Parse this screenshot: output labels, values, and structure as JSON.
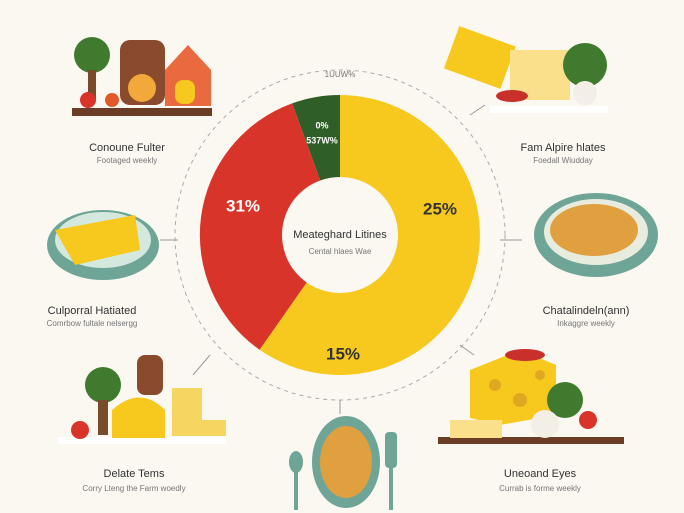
{
  "top_label": "1UUW%",
  "center": {
    "title": "Meateghard Litines",
    "subtitle": "Cental hlaes Wae"
  },
  "segment_labels": [
    "0%",
    "537W%",
    "31%",
    "25%",
    "15%"
  ],
  "items": [
    {
      "title": "Conoune Fulter",
      "subtitle": "Footaged weekly"
    },
    {
      "title": "Fam Alpire hlates",
      "subtitle": "Foedall Wiudday"
    },
    {
      "title": "Culporral Hatiated",
      "subtitle": "Comrbow fultale nelsergg"
    },
    {
      "title": "Chatalindeln(ann)",
      "subtitle": "Inkaggre weekly"
    },
    {
      "title": "Delate Tems",
      "subtitle": "Corry Lteng the Farm woedly"
    },
    {
      "title": "Uneoand Eyes",
      "subtitle": "Currab is forme weekly"
    }
  ]
}
